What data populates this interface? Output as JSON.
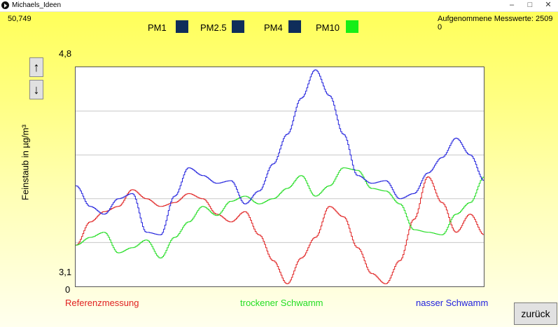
{
  "window": {
    "title": "Michaels_Ideen"
  },
  "readout": {
    "value": "50,749"
  },
  "count": {
    "label": "Aufgenommene Messwerte: 2509",
    "value": "0"
  },
  "legend": [
    {
      "label": "PM1",
      "color": "#0f2d5a"
    },
    {
      "label": "PM2.5",
      "color": "#0f2d5a"
    },
    {
      "label": "PM4",
      "color": "#0f2d5a"
    },
    {
      "label": "PM10",
      "color": "#17ee17"
    }
  ],
  "buttons": {
    "up": "↑",
    "down": "↓",
    "back": "zurück"
  },
  "series_legend": [
    {
      "label": "Referenzmessung",
      "color": "#e02020"
    },
    {
      "label": "trockener Schwamm",
      "color": "#22dd22"
    },
    {
      "label": "nasser Schwamm",
      "color": "#2020dd"
    }
  ],
  "chart_data": {
    "type": "line",
    "ylabel": "Feinstaub in µg/m³",
    "ytick_labels": [
      "4,8",
      "3,1"
    ],
    "ylim": [
      3.1,
      4.8
    ],
    "x_start_label": "0",
    "grid": true,
    "x": [
      0,
      20,
      40,
      60,
      80,
      100,
      120,
      140,
      160,
      180,
      200,
      220,
      240,
      260,
      280,
      300,
      320,
      340,
      360,
      380,
      400,
      420,
      440,
      460,
      480,
      500,
      520,
      540,
      560,
      580
    ],
    "series": [
      {
        "name": "Referenzmessung",
        "color": "#e02020",
        "values": [
          3.42,
          3.6,
          3.68,
          3.72,
          3.85,
          3.78,
          3.72,
          3.75,
          3.82,
          3.78,
          3.66,
          3.6,
          3.68,
          3.5,
          3.3,
          3.12,
          3.32,
          3.48,
          3.72,
          3.64,
          3.4,
          3.2,
          3.12,
          3.3,
          3.62,
          3.95,
          3.75,
          3.52,
          3.66,
          3.5
        ]
      },
      {
        "name": "trockener Schwamm",
        "color": "#22dd22",
        "values": [
          3.42,
          3.48,
          3.52,
          3.36,
          3.4,
          3.46,
          3.32,
          3.48,
          3.6,
          3.72,
          3.65,
          3.76,
          3.8,
          3.74,
          3.78,
          3.86,
          3.96,
          3.8,
          3.88,
          4.02,
          4.0,
          3.86,
          3.84,
          3.74,
          3.54,
          3.52,
          3.5,
          3.66,
          3.75,
          3.95
        ]
      },
      {
        "name": "nasser Schwamm",
        "color": "#2020dd",
        "values": [
          3.88,
          3.72,
          3.66,
          3.78,
          3.82,
          3.52,
          3.5,
          3.8,
          4.02,
          3.96,
          3.9,
          3.92,
          3.74,
          3.84,
          4.05,
          4.28,
          4.56,
          4.78,
          4.58,
          4.28,
          3.96,
          3.9,
          3.92,
          3.78,
          3.82,
          3.98,
          4.1,
          4.25,
          4.12,
          3.92
        ]
      }
    ]
  }
}
